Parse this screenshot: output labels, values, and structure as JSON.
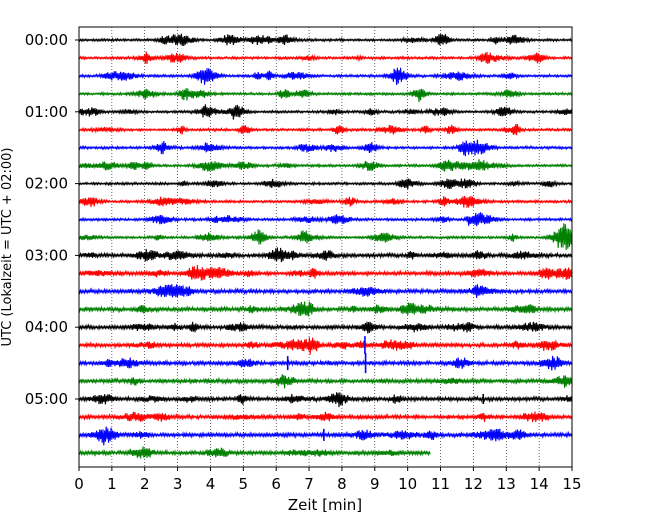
{
  "chart_data": {
    "type": "line",
    "title": "",
    "xlabel": "Zeit  [min]",
    "ylabel": "UTC (Lokalzeit = UTC + 02:00)",
    "xlim": [
      0,
      15
    ],
    "x_ticks": [
      "0",
      "1",
      "2",
      "3",
      "4",
      "5",
      "6",
      "7",
      "8",
      "9",
      "10",
      "11",
      "12",
      "13",
      "14",
      "15"
    ],
    "y_ticks": [
      "00:00",
      "01:00",
      "02:00",
      "03:00",
      "04:00",
      "05:00"
    ],
    "grid": "vertical dotted",
    "trace_colors": [
      "#000000",
      "#ff0000",
      "#0000ff",
      "#008000"
    ],
    "trace_interval_min": 15,
    "traces": [
      {
        "start": "00:00",
        "end_min": 15
      },
      {
        "start": "00:15",
        "end_min": 15
      },
      {
        "start": "00:30",
        "end_min": 15
      },
      {
        "start": "00:45",
        "end_min": 15
      },
      {
        "start": "01:00",
        "end_min": 15
      },
      {
        "start": "01:15",
        "end_min": 15
      },
      {
        "start": "01:30",
        "end_min": 15
      },
      {
        "start": "01:45",
        "end_min": 15
      },
      {
        "start": "02:00",
        "end_min": 15
      },
      {
        "start": "02:15",
        "end_min": 15
      },
      {
        "start": "02:30",
        "end_min": 15
      },
      {
        "start": "02:45",
        "end_min": 15
      },
      {
        "start": "03:00",
        "end_min": 15
      },
      {
        "start": "03:15",
        "end_min": 15
      },
      {
        "start": "03:30",
        "end_min": 15
      },
      {
        "start": "03:45",
        "end_min": 15
      },
      {
        "start": "04:00",
        "end_min": 15
      },
      {
        "start": "04:15",
        "end_min": 15
      },
      {
        "start": "04:30",
        "end_min": 15
      },
      {
        "start": "04:45",
        "end_min": 15
      },
      {
        "start": "05:00",
        "end_min": 15
      },
      {
        "start": "05:15",
        "end_min": 15
      },
      {
        "start": "05:30",
        "end_min": 15
      },
      {
        "start": "05:45",
        "end_min": 10.7
      }
    ]
  }
}
